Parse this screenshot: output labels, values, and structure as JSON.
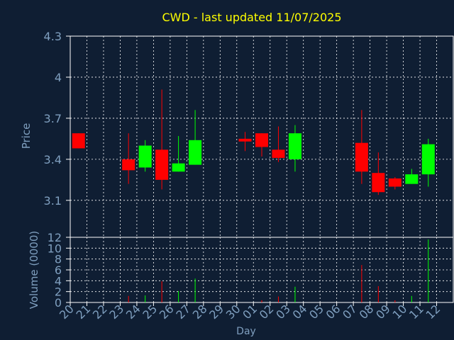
{
  "colors": {
    "background": "#0f1e33",
    "axis_text": "#7f9fbf",
    "grid": "#ffffff",
    "up": "#00ff00",
    "down": "#ff0000",
    "title": "#ffff00",
    "frame": "#ffffff"
  },
  "chart_data": {
    "type": "candlestick",
    "title": "CWD - last updated 11/07/2025",
    "xlabel": "Day",
    "ylabel": "Price",
    "volume_label": "Volume (0000)",
    "grid": true,
    "price_ticks": [
      "4.3",
      "4",
      "3.7",
      "3.4",
      "3.1"
    ],
    "price_ylim": [
      2.83,
      4.3
    ],
    "volume_ticks": [
      "12",
      "10",
      "8",
      "6",
      "4",
      "2",
      "0"
    ],
    "volume_ylim": [
      0,
      12
    ],
    "day_labels": [
      "20",
      "21",
      "22",
      "23",
      "24",
      "25",
      "26",
      "27",
      "28",
      "29",
      "30",
      "01",
      "02",
      "03",
      "04",
      "05",
      "06",
      "07",
      "08",
      "09",
      "10",
      "11",
      "12"
    ],
    "candles": [
      {
        "day": "20",
        "open": 3.59,
        "close": 3.48,
        "high": 3.59,
        "low": 3.48,
        "volume": 0.0
      },
      {
        "day": "23",
        "open": 3.4,
        "close": 3.32,
        "high": 3.59,
        "low": 3.22,
        "volume": 1.2
      },
      {
        "day": "24",
        "open": 3.34,
        "close": 3.5,
        "high": 3.54,
        "low": 3.31,
        "volume": 1.3
      },
      {
        "day": "25",
        "open": 3.47,
        "close": 3.25,
        "high": 3.91,
        "low": 3.18,
        "volume": 3.9
      },
      {
        "day": "26",
        "open": 3.31,
        "close": 3.37,
        "high": 3.57,
        "low": 3.31,
        "volume": 2.1
      },
      {
        "day": "27",
        "open": 3.36,
        "close": 3.54,
        "high": 3.76,
        "low": 3.36,
        "volume": 4.4
      },
      {
        "day": "30",
        "open": 3.55,
        "close": 3.53,
        "high": 3.6,
        "low": 3.46,
        "volume": 0.0
      },
      {
        "day": "01",
        "open": 3.59,
        "close": 3.49,
        "high": 3.59,
        "low": 3.42,
        "volume": 0.4
      },
      {
        "day": "02",
        "open": 3.47,
        "close": 3.41,
        "high": 3.64,
        "low": 3.38,
        "volume": 1.1
      },
      {
        "day": "03",
        "open": 3.4,
        "close": 3.59,
        "high": 3.65,
        "low": 3.31,
        "volume": 2.9
      },
      {
        "day": "07",
        "open": 3.52,
        "close": 3.31,
        "high": 3.76,
        "low": 3.22,
        "volume": 6.9
      },
      {
        "day": "08",
        "open": 3.3,
        "close": 3.16,
        "high": 3.45,
        "low": 3.14,
        "volume": 3.0
      },
      {
        "day": "09",
        "open": 3.26,
        "close": 3.2,
        "high": 3.27,
        "low": 3.18,
        "volume": 0.4
      },
      {
        "day": "10",
        "open": 3.22,
        "close": 3.29,
        "high": 3.33,
        "low": 3.22,
        "volume": 1.2
      },
      {
        "day": "11",
        "open": 3.29,
        "close": 3.51,
        "high": 3.55,
        "low": 3.2,
        "volume": 11.6
      }
    ]
  }
}
